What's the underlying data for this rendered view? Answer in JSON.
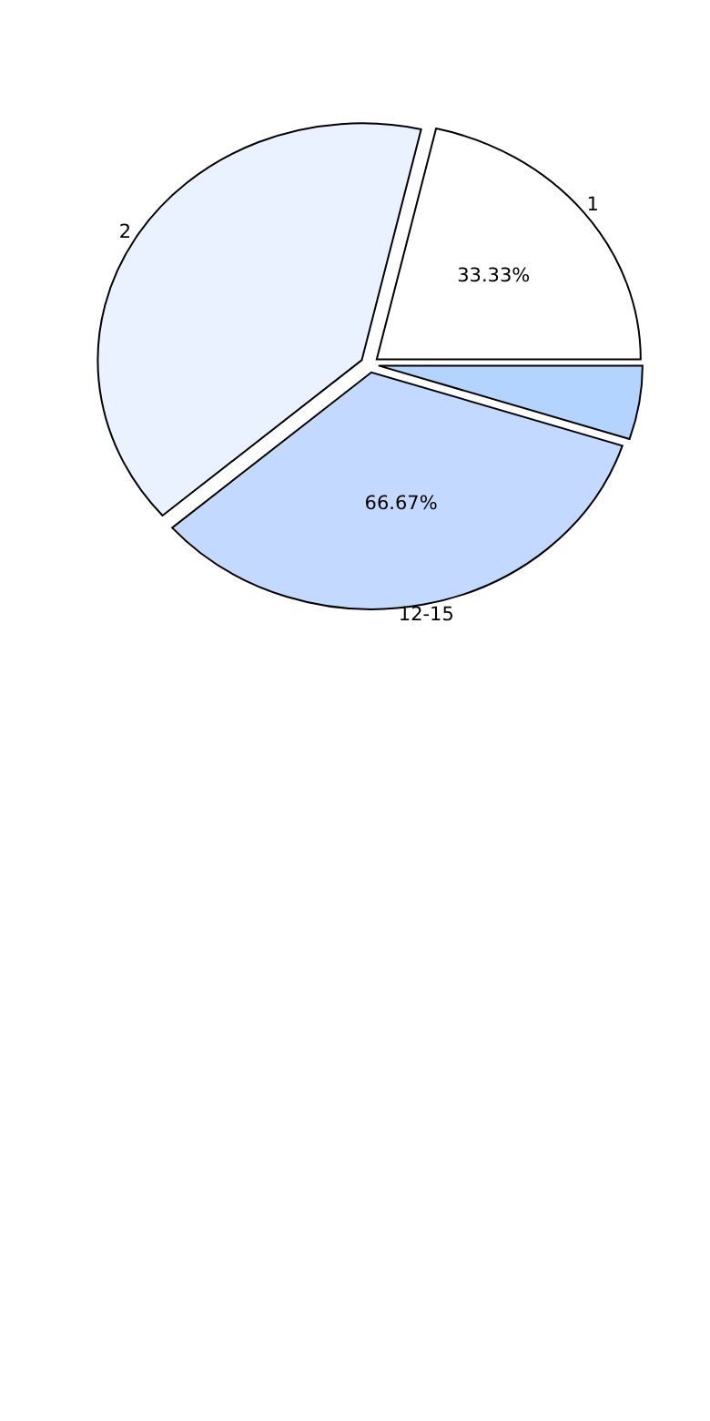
{
  "chart_data": {
    "type": "pie",
    "categories": [
      "1",
      null,
      "12-15",
      "2"
    ],
    "values": [
      21.4,
      5,
      33.6,
      40
    ],
    "colors": [
      "#ffffff",
      "#b3d4ff",
      "#c4d9ff",
      "#eaf1ff"
    ],
    "annotations": [
      {
        "text": "33.33%",
        "x": "1"
      },
      {
        "text": "66.67%",
        "x": "12-15"
      }
    ]
  }
}
